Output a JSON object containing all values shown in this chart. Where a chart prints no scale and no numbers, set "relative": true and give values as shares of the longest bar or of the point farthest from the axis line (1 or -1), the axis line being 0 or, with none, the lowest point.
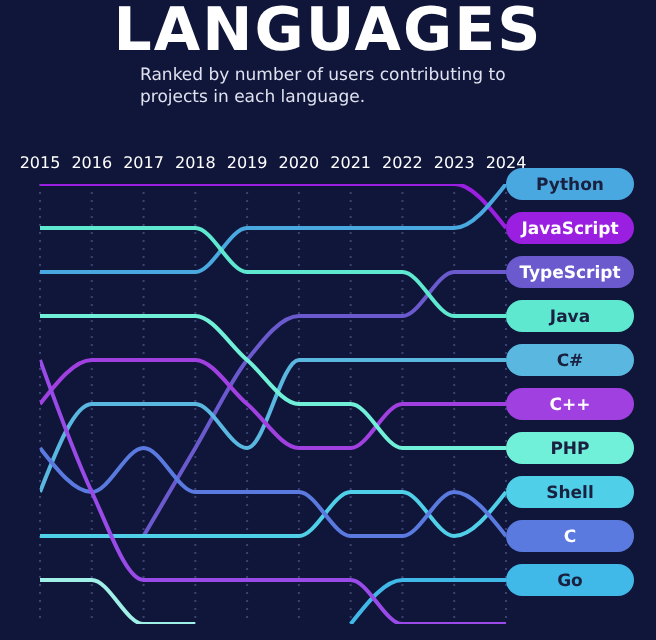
{
  "chart_data": {
    "type": "line",
    "title": "LANGUAGES",
    "subtitle": "Ranked by number of users contributing to projects in each language.",
    "x": [
      2015,
      2016,
      2017,
      2018,
      2019,
      2020,
      2021,
      2022,
      2023,
      2024
    ],
    "xlim": [
      2015,
      2024
    ],
    "xticks": [
      2015,
      2016,
      2017,
      2018,
      2019,
      2020,
      2021,
      2022,
      2023,
      2024
    ],
    "relative": true,
    "grid": "x",
    "marker": "none",
    "series": [
      {
        "name": "JavaScript",
        "color": "#9b1fe0",
        "values": [
          1,
          1,
          1,
          1,
          1,
          1,
          1,
          1,
          1,
          0.9
        ]
      },
      {
        "name": "Python",
        "color": "#4aa8e0",
        "values": [
          0.8,
          0.8,
          0.8,
          0.8,
          0.9,
          0.9,
          0.9,
          0.9,
          0.9,
          1
        ]
      },
      {
        "name": "TypeScript",
        "color": "#6a5acd",
        "values": [
          null,
          null,
          0.2,
          0.4,
          0.6,
          0.7,
          0.7,
          0.7,
          0.8,
          0.8
        ]
      },
      {
        "name": "Java",
        "color": "#5ee8d0",
        "values": [
          0.9,
          0.9,
          0.9,
          0.9,
          0.8,
          0.8,
          0.8,
          0.8,
          0.7,
          0.7
        ]
      },
      {
        "name": "C#",
        "color": "#5ab8e0",
        "values": [
          0.3,
          0.5,
          0.5,
          0.5,
          0.4,
          0.6,
          0.6,
          0.6,
          0.6,
          0.6
        ]
      },
      {
        "name": "C++",
        "color": "#a040e0",
        "values": [
          0.5,
          0.6,
          0.6,
          0.6,
          0.5,
          0.4,
          0.4,
          0.5,
          0.5,
          0.5
        ]
      },
      {
        "name": "PHP",
        "color": "#70f0d8",
        "values": [
          0.7,
          0.7,
          0.7,
          0.7,
          0.6,
          0.5,
          0.5,
          0.4,
          0.4,
          0.4
        ]
      },
      {
        "name": "Shell",
        "color": "#50d0e8",
        "values": [
          0.2,
          0.2,
          0.2,
          0.2,
          0.2,
          0.2,
          0.3,
          0.3,
          0.2,
          0.3
        ]
      },
      {
        "name": "C",
        "color": "#5a7ae0",
        "values": [
          0.4,
          0.3,
          0.4,
          0.3,
          0.3,
          0.3,
          0.2,
          0.2,
          0.3,
          0.2
        ]
      },
      {
        "name": "Go",
        "color": "#40b8e8",
        "values": [
          null,
          null,
          null,
          null,
          null,
          null,
          0,
          0.1,
          0.1,
          0.1
        ]
      },
      {
        "color": "#9a4ae8",
        "values": [
          0.6,
          0.3,
          0.1,
          0.1,
          0.1,
          0.1,
          0.1,
          0,
          0,
          0
        ]
      },
      {
        "color": "#a0f0e8",
        "values": [
          0.1,
          0.1,
          0,
          0,
          null,
          null,
          null,
          null,
          null,
          null
        ]
      }
    ]
  }
}
